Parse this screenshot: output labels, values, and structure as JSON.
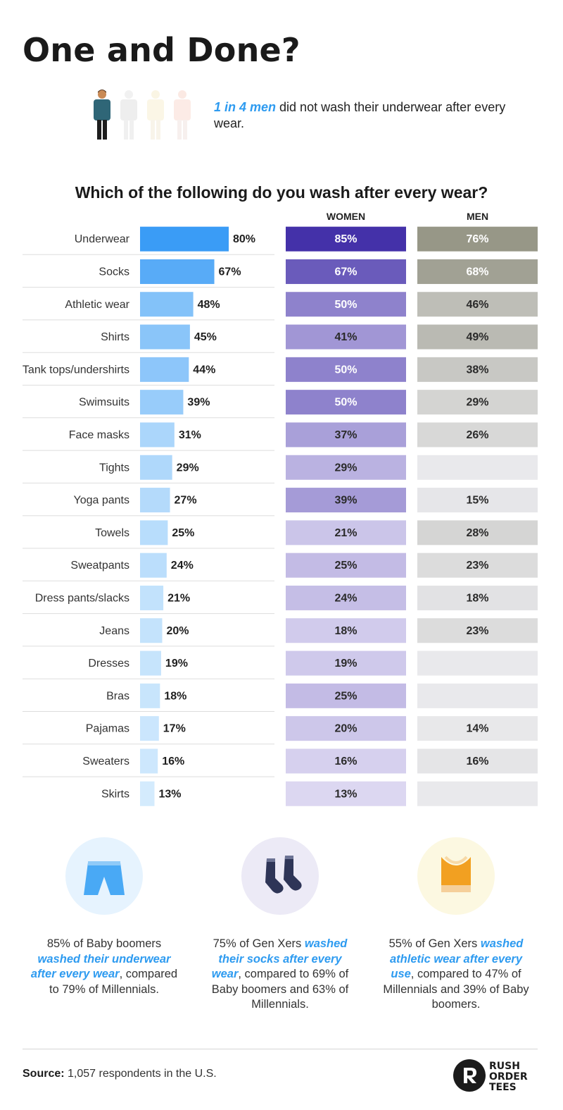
{
  "title": "One and Done?",
  "headline": {
    "highlight": "1 in 4 men",
    "rest": " did not wash their underwear after every wear."
  },
  "question": "Which of the following do you wash after every wear?",
  "column_headers": {
    "women": "WOMEN",
    "men": "MEN"
  },
  "colors": {
    "overall_dark": "#2e96f5",
    "overall_light": "#d4ebfd",
    "women_dark": "#4431a9",
    "women_light": "#dcd7f1",
    "men_dark": "#8b8b79",
    "men_light": "#e9e9ec",
    "accent_blue": "#2e9bf0"
  },
  "chart_data": {
    "type": "bar",
    "title": "Which of the following do you wash after every wear?",
    "categories": [
      "Underwear",
      "Socks",
      "Athletic wear",
      "Shirts",
      "Tank tops/undershirts",
      "Swimsuits",
      "Face masks",
      "Tights",
      "Yoga pants",
      "Towels",
      "Sweatpants",
      "Dress pants/slacks",
      "Jeans",
      "Dresses",
      "Bras",
      "Pajamas",
      "Sweaters",
      "Skirts"
    ],
    "series": [
      {
        "values": [
          80,
          67,
          48,
          45,
          44,
          39,
          31,
          29,
          27,
          25,
          24,
          21,
          20,
          19,
          18,
          17,
          16,
          13
        ]
      },
      {
        "name": "WOMEN",
        "values": [
          85,
          67,
          50,
          41,
          50,
          50,
          37,
          29,
          39,
          21,
          25,
          24,
          18,
          19,
          25,
          20,
          16,
          13
        ]
      },
      {
        "name": "MEN",
        "values": [
          76,
          68,
          46,
          49,
          38,
          29,
          26,
          null,
          15,
          28,
          23,
          18,
          23,
          null,
          null,
          14,
          16,
          null
        ]
      }
    ],
    "value_suffix": "%",
    "xlim": [
      0,
      100
    ]
  },
  "footer": [
    {
      "icon": "shorts-icon",
      "circle_color": "#e6f3fe",
      "parts": [
        {
          "t": "85% of Baby boomers ",
          "h": false
        },
        {
          "t": "washed their underwear after every wear",
          "h": true
        },
        {
          "t": ", compared to 79% of Millennials.",
          "h": false
        }
      ]
    },
    {
      "icon": "socks-icon",
      "circle_color": "#eceaf6",
      "parts": [
        {
          "t": "75% of Gen Xers ",
          "h": false
        },
        {
          "t": "washed their socks after every wear",
          "h": true
        },
        {
          "t": ", compared to 69% of Baby boomers and 63% of Millennials.",
          "h": false
        }
      ]
    },
    {
      "icon": "sports-top-icon",
      "circle_color": "#fcf8e1",
      "parts": [
        {
          "t": "55% of Gen Xers ",
          "h": false
        },
        {
          "t": "washed athletic wear after every use",
          "h": true
        },
        {
          "t": ", compared to 47% of Millennials and 39% of Baby boomers.",
          "h": false
        }
      ]
    }
  ],
  "source": {
    "label": "Source:",
    "text": " 1,057 respondents in the U.S."
  },
  "logo": {
    "line1": "RUSH",
    "line2": "ORDER",
    "line3": "TEES"
  }
}
